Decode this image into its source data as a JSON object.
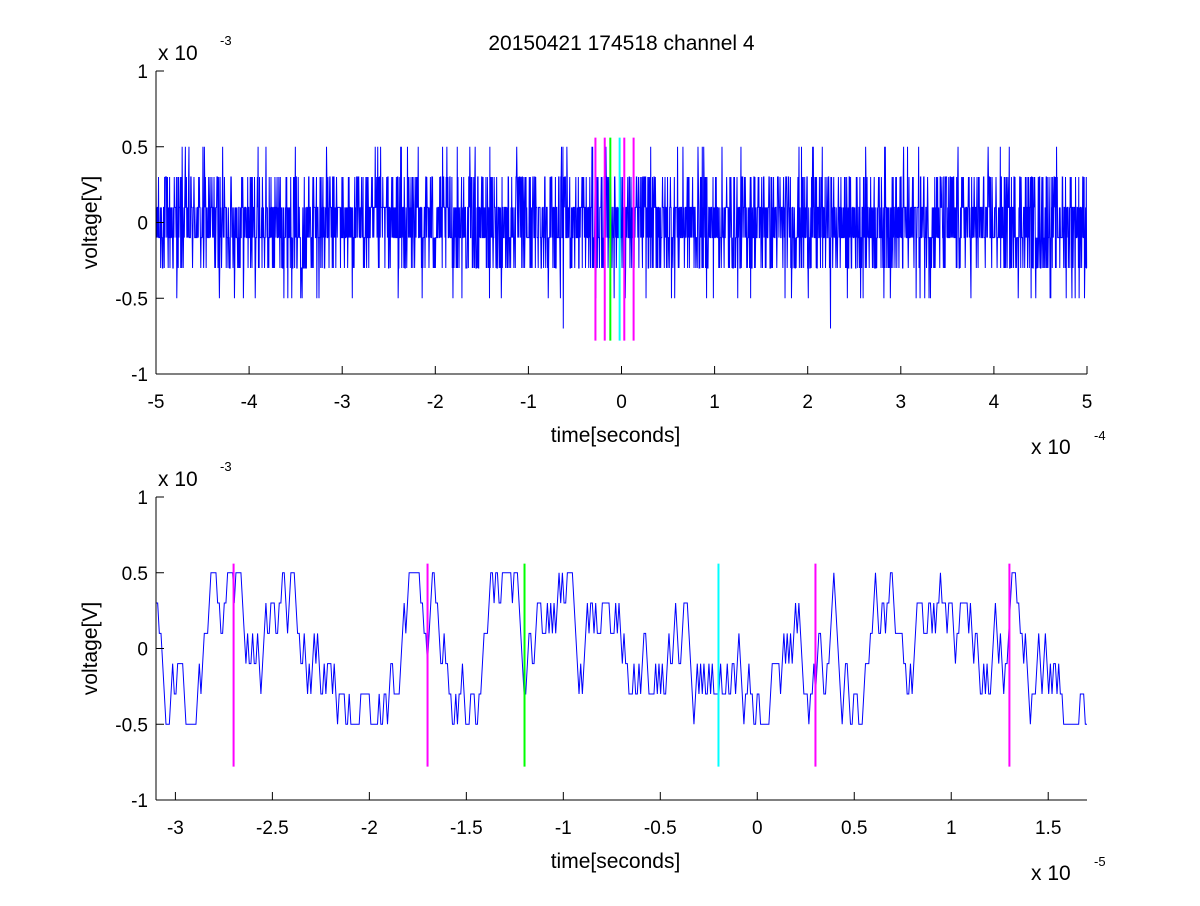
{
  "chart_data": [
    {
      "type": "line",
      "title": "20150421 174518 channel 4",
      "xlabel": "time[seconds]",
      "ylabel": "voltage[V]",
      "xlim": [
        -5,
        5
      ],
      "ylim": [
        -1,
        1
      ],
      "x_multiplier": {
        "base": "x 10",
        "exponent": "-4"
      },
      "y_multiplier": {
        "base": "x 10",
        "exponent": "-3"
      },
      "xticks": [
        "-5",
        "-4",
        "-3",
        "-2",
        "-1",
        "0",
        "1",
        "2",
        "3",
        "4",
        "5"
      ],
      "yticks": [
        "-1",
        "-0.5",
        "0",
        "0.5",
        "1"
      ],
      "grid": false,
      "series": [
        {
          "color": "#0000ff",
          "style": "dense noise trace",
          "x_range": [
            -5,
            5
          ],
          "levels": [
            -0.7,
            -0.5,
            -0.3,
            -0.1,
            0.1,
            0.3,
            0.5
          ]
        }
      ],
      "markers": [
        {
          "x": -0.28,
          "color": "#ff00ff"
        },
        {
          "x": -0.18,
          "color": "#ff00ff"
        },
        {
          "x": -0.12,
          "color": "#00ff00"
        },
        {
          "x": -0.02,
          "color": "#00ffff"
        },
        {
          "x": 0.03,
          "color": "#ff00ff"
        },
        {
          "x": 0.13,
          "color": "#ff00ff"
        }
      ],
      "marker_range": [
        -0.78,
        0.56
      ]
    },
    {
      "type": "line",
      "title": "",
      "xlabel": "time[seconds]",
      "ylabel": "voltage[V]",
      "xlim": [
        -3.1,
        1.7
      ],
      "ylim": [
        -1,
        1
      ],
      "x_multiplier": {
        "base": "x 10",
        "exponent": "-5"
      },
      "y_multiplier": {
        "base": "x 10",
        "exponent": "-3"
      },
      "xticks": [
        "-3",
        "-2.5",
        "-2",
        "-1.5",
        "-1",
        "-0.5",
        "0",
        "0.5",
        "1",
        "1.5"
      ],
      "yticks": [
        "-1",
        "-0.5",
        "0",
        "0.5",
        "1"
      ],
      "grid": false,
      "series": [
        {
          "color": "#0000ff",
          "style": "noise trace",
          "x_range": [
            -3.1,
            1.7
          ],
          "levels": [
            -0.5,
            -0.3,
            -0.1,
            0.1,
            0.3,
            0.5
          ]
        }
      ],
      "markers": [
        {
          "x": -2.7,
          "color": "#ff00ff"
        },
        {
          "x": -1.7,
          "color": "#ff00ff"
        },
        {
          "x": -1.2,
          "color": "#00ff00"
        },
        {
          "x": -0.2,
          "color": "#00ffff"
        },
        {
          "x": 0.3,
          "color": "#ff00ff"
        },
        {
          "x": 1.3,
          "color": "#ff00ff"
        }
      ],
      "marker_range": [
        -0.78,
        0.56
      ]
    }
  ]
}
